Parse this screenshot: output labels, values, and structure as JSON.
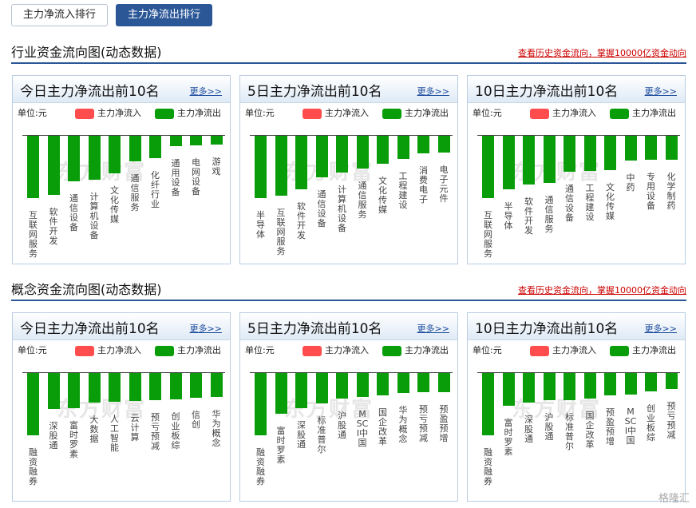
{
  "tabs": [
    {
      "label": "主力净流入排行",
      "active": false
    },
    {
      "label": "主力净流出排行",
      "active": true
    }
  ],
  "legend": {
    "unit": "单位:元",
    "inflow": "主力净流入",
    "outflow": "主力净流出",
    "inflow_color": "#ff4d4d",
    "outflow_color": "#0a9d0a"
  },
  "watermark": "东方财富",
  "corner_logo": "格隆汇",
  "sections": [
    {
      "title": "行业资金流向图(动态数据)",
      "link": "查看历史资金流向，掌握10000亿资金动向",
      "panels": [
        {
          "title": "今日主力净流出前10名",
          "more": "更多>>",
          "chart_data": {
            "type": "bar",
            "categories": [
              "互联网服务",
              "软件开发",
              "通信设备",
              "计算机设备",
              "文化传媒",
              "通信服务",
              "化纤行业",
              "通用设备",
              "电网设备",
              "游戏"
            ],
            "values": [
              -1.0,
              -0.95,
              -0.73,
              -0.71,
              -0.6,
              -0.41,
              -0.36,
              -0.17,
              -0.16,
              -0.14
            ]
          }
        },
        {
          "title": "5日主力净流出前10名",
          "more": "更多>>",
          "chart_data": {
            "type": "bar",
            "categories": [
              "半导体",
              "互联网服务",
              "软件开发",
              "通信设备",
              "计算机设备",
              "通信服务",
              "文化传媒",
              "工程建设",
              "消费电子",
              "电子元件"
            ],
            "values": [
              -1.0,
              -0.96,
              -0.86,
              -0.67,
              -0.59,
              -0.53,
              -0.45,
              -0.37,
              -0.28,
              -0.27
            ]
          }
        },
        {
          "title": "10日主力净流出前10名",
          "more": "更多>>",
          "chart_data": {
            "type": "bar",
            "categories": [
              "互联网服务",
              "半导体",
              "软件开发",
              "通信服务",
              "通信设备",
              "工程建设",
              "文化传媒",
              "中药",
              "专用设备",
              "化学制药"
            ],
            "values": [
              -1.0,
              -0.86,
              -0.78,
              -0.76,
              -0.58,
              -0.57,
              -0.55,
              -0.4,
              -0.38,
              -0.38
            ]
          }
        }
      ]
    },
    {
      "title": "概念资金流向图(动态数据)",
      "link": "查看历史资金流向，掌握10000亿资金动向",
      "panels": [
        {
          "title": "今日主力净流出前10名",
          "more": "更多>>",
          "chart_data": {
            "type": "bar",
            "categories": [
              "融资融券",
              "深股通",
              "富时罗素",
              "大数据",
              "人工智能",
              "云计算",
              "预亏预减",
              "创业板综",
              "信创",
              "华为概念"
            ],
            "values": [
              -1.0,
              -0.58,
              -0.56,
              -0.47,
              -0.46,
              -0.45,
              -0.44,
              -0.42,
              -0.4,
              -0.38
            ]
          }
        },
        {
          "title": "5日主力净流出前10名",
          "more": "更多>>",
          "chart_data": {
            "type": "bar",
            "categories": [
              "融资融券",
              "富时罗素",
              "深股通",
              "标准普尔",
              "沪股通",
              "MSCI中国",
              "国企改革",
              "华为概念",
              "预亏预减",
              "预盈预增"
            ],
            "values": [
              -1.0,
              -0.66,
              -0.56,
              -0.49,
              -0.41,
              -0.38,
              -0.36,
              -0.32,
              -0.31,
              -0.31
            ]
          }
        },
        {
          "title": "10日主力净流出前10名",
          "more": "更多>>",
          "chart_data": {
            "type": "bar",
            "categories": [
              "融资融券",
              "富时罗素",
              "深股通",
              "沪股通",
              "标准普尔",
              "国企改革",
              "预盈预增",
              "MSCI中国",
              "创业板综",
              "预亏预减"
            ],
            "values": [
              -1.0,
              -0.52,
              -0.48,
              -0.43,
              -0.43,
              -0.41,
              -0.36,
              -0.34,
              -0.3,
              -0.25
            ]
          }
        }
      ]
    }
  ]
}
